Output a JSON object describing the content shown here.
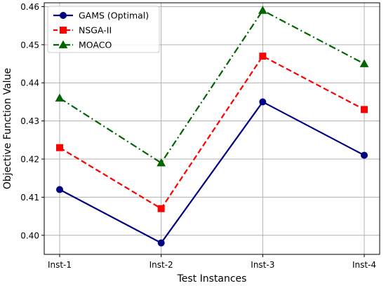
{
  "chart_data": {
    "type": "line",
    "title": "",
    "xlabel": "Test Instances",
    "ylabel": "Objective Function Value",
    "categories": [
      "Inst-1",
      "Inst-2",
      "Inst-3",
      "Inst-4"
    ],
    "ylim": [
      0.395,
      0.461
    ],
    "yticks": [
      "0.40",
      "0.41",
      "0.42",
      "0.43",
      "0.44",
      "0.45",
      "0.46"
    ],
    "grid": true,
    "legend_position": "top-left",
    "series": [
      {
        "name": "GAMS (Optimal)",
        "values": [
          0.412,
          0.398,
          0.435,
          0.421
        ],
        "color": "#000080",
        "marker": "circle",
        "line_style": "solid"
      },
      {
        "name": "NSGA-II",
        "values": [
          0.423,
          0.407,
          0.447,
          0.433
        ],
        "color": "#ff0000",
        "marker": "square",
        "line_style": "dashed"
      },
      {
        "name": "MOACO",
        "values": [
          0.436,
          0.419,
          0.459,
          0.445
        ],
        "color": "#006400",
        "marker": "triangle",
        "line_style": "dashdot"
      }
    ]
  }
}
